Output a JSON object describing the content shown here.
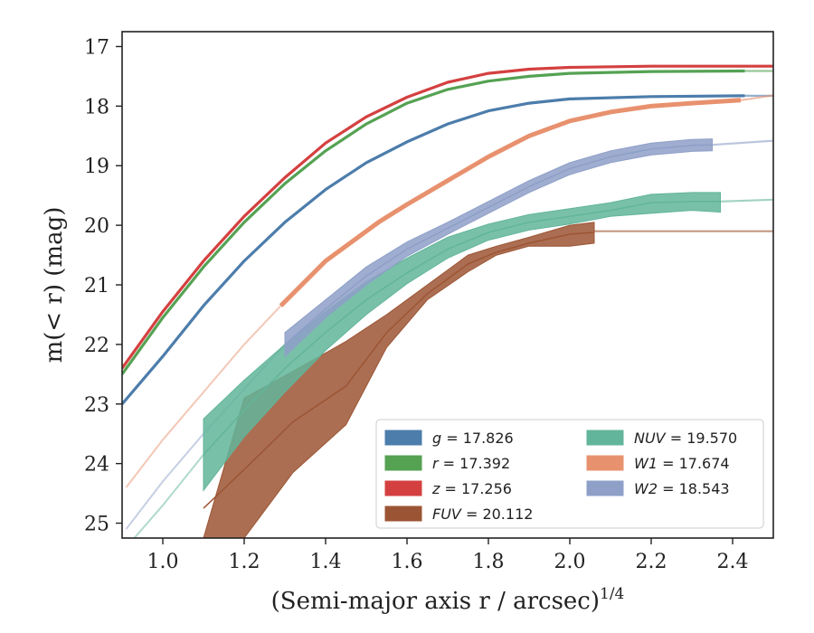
{
  "chart_data": {
    "type": "line",
    "title": "",
    "xlabel_main": "(Semi-major axis r / arcsec)",
    "xlabel_sup": "1/4",
    "ylabel": "m(< r) (mag)",
    "xlim": [
      0.9,
      2.5
    ],
    "ylim": [
      25.25,
      16.75
    ],
    "y_inverted": true,
    "xticks": [
      "1.0",
      "1.2",
      "1.4",
      "1.6",
      "1.8",
      "2.0",
      "2.2",
      "2.4"
    ],
    "xtick_values": [
      1.0,
      1.2,
      1.4,
      1.6,
      1.8,
      2.0,
      2.2,
      2.4
    ],
    "yticks": [
      "17",
      "18",
      "19",
      "20",
      "21",
      "22",
      "23",
      "24",
      "25"
    ],
    "ytick_values": [
      17,
      18,
      19,
      20,
      21,
      22,
      23,
      24,
      25
    ],
    "grid": false,
    "legend_placement": "bottom-right",
    "series": [
      {
        "name": "g = 17.826",
        "color": "#4c7dab",
        "style": "line",
        "x": [
          0.9,
          1.0,
          1.1,
          1.2,
          1.3,
          1.4,
          1.5,
          1.6,
          1.7,
          1.8,
          1.9,
          2.0,
          2.2,
          2.43
        ],
        "y": [
          23.0,
          22.2,
          21.35,
          20.6,
          19.95,
          19.4,
          18.95,
          18.6,
          18.3,
          18.08,
          17.95,
          17.88,
          17.84,
          17.826
        ],
        "ext_x": [
          2.43,
          2.5
        ],
        "ext_y": [
          17.826,
          17.826
        ]
      },
      {
        "name": "r = 17.392",
        "color": "#55a253",
        "style": "line",
        "x": [
          0.9,
          1.0,
          1.1,
          1.2,
          1.3,
          1.4,
          1.5,
          1.6,
          1.7,
          1.8,
          1.9,
          2.0,
          2.2,
          2.43
        ],
        "y": [
          22.5,
          21.55,
          20.7,
          19.95,
          19.3,
          18.75,
          18.3,
          17.95,
          17.72,
          17.58,
          17.5,
          17.45,
          17.42,
          17.41
        ],
        "ext_x": [
          2.43,
          2.5
        ],
        "ext_y": [
          17.41,
          17.41
        ]
      },
      {
        "name": "z = 17.256",
        "color": "#d44040",
        "style": "line",
        "x": [
          0.9,
          1.0,
          1.1,
          1.2,
          1.3,
          1.4,
          1.5,
          1.6,
          1.7,
          1.8,
          1.9,
          2.0,
          2.2,
          2.5
        ],
        "y": [
          22.4,
          21.45,
          20.6,
          19.85,
          19.2,
          18.62,
          18.18,
          17.85,
          17.6,
          17.45,
          17.38,
          17.35,
          17.33,
          17.33
        ],
        "ext_x": [],
        "ext_y": []
      },
      {
        "name": "FUV = 20.112",
        "color": "#9c5534",
        "style": "band",
        "x": [
          1.1,
          1.2,
          1.32,
          1.45,
          1.55,
          1.65,
          1.75,
          1.82,
          1.9,
          2.0,
          2.06
        ],
        "y": [
          24.75,
          24.1,
          23.3,
          22.7,
          21.8,
          21.15,
          20.65,
          20.45,
          20.3,
          20.15,
          20.12
        ],
        "y_upper": [
          25.25,
          25.25,
          24.15,
          23.35,
          22.05,
          21.25,
          20.78,
          20.5,
          20.35,
          20.35,
          20.3
        ],
        "y_lower": [
          25.25,
          22.9,
          22.45,
          21.95,
          21.5,
          21.0,
          20.5,
          20.35,
          20.2,
          20.0,
          19.95
        ],
        "ext_x": [
          2.06,
          2.5
        ],
        "ext_y": [
          20.1,
          20.1
        ]
      },
      {
        "name": "NUV = 19.570",
        "color": "#62b59a",
        "style": "band",
        "x": [
          1.1,
          1.2,
          1.3,
          1.4,
          1.5,
          1.6,
          1.7,
          1.8,
          1.9,
          2.0,
          2.1,
          2.2,
          2.3,
          2.37
        ],
        "y": [
          23.85,
          23.1,
          22.4,
          21.8,
          21.25,
          20.8,
          20.4,
          20.12,
          19.95,
          19.85,
          19.75,
          19.62,
          19.6,
          19.6
        ],
        "y_upper": [
          24.45,
          23.55,
          22.8,
          22.1,
          21.5,
          20.98,
          20.55,
          20.25,
          20.08,
          19.98,
          19.85,
          19.8,
          19.75,
          19.78
        ],
        "y_lower": [
          23.25,
          22.6,
          22.0,
          21.45,
          20.95,
          20.55,
          20.2,
          19.98,
          19.82,
          19.72,
          19.62,
          19.48,
          19.45,
          19.45
        ],
        "ext_x": [
          2.37,
          2.5
        ],
        "ext_y": [
          19.6,
          19.57
        ]
      },
      {
        "name": "W1 = 17.674",
        "color": "#e8916e",
        "style": "thick",
        "x": [
          1.29,
          1.4,
          1.53,
          1.6,
          1.7,
          1.8,
          1.9,
          2.0,
          2.1,
          2.2,
          2.3,
          2.42
        ],
        "y": [
          21.35,
          20.6,
          19.95,
          19.65,
          19.25,
          18.85,
          18.5,
          18.25,
          18.1,
          18.0,
          17.95,
          17.9
        ],
        "ext_x": [
          2.42,
          2.5
        ],
        "ext_y": [
          17.9,
          17.82
        ]
      },
      {
        "name": "W2 = 18.543",
        "color": "#8e9fc8",
        "style": "band",
        "x": [
          1.3,
          1.4,
          1.5,
          1.6,
          1.7,
          1.8,
          1.9,
          2.0,
          2.1,
          2.2,
          2.3,
          2.35
        ],
        "y": [
          22.0,
          21.4,
          20.85,
          20.4,
          20.05,
          19.7,
          19.35,
          19.05,
          18.85,
          18.72,
          18.66,
          18.65
        ],
        "y_upper": [
          22.2,
          21.55,
          21.0,
          20.52,
          20.15,
          19.8,
          19.45,
          19.15,
          18.95,
          18.82,
          18.76,
          18.75
        ],
        "y_lower": [
          21.8,
          21.25,
          20.7,
          20.28,
          19.95,
          19.6,
          19.25,
          18.95,
          18.75,
          18.62,
          18.56,
          18.55
        ],
        "ext_x": [
          2.35,
          2.5
        ],
        "ext_y": [
          18.65,
          18.58
        ]
      }
    ],
    "faint_extensions": [
      {
        "name": "W1",
        "color": "#e8916e",
        "x": [
          0.91,
          1.0,
          1.1,
          1.2,
          1.29
        ],
        "y": [
          24.4,
          23.6,
          22.8,
          22.0,
          21.35
        ]
      },
      {
        "name": "W2",
        "color": "#8e9fc8",
        "x": [
          0.91,
          1.0,
          1.1,
          1.2,
          1.3
        ],
        "y": [
          25.1,
          24.3,
          23.5,
          22.75,
          22.0
        ]
      },
      {
        "name": "NUV",
        "color": "#62b59a",
        "x": [
          0.93,
          1.0,
          1.1
        ],
        "y": [
          25.25,
          24.7,
          23.85
        ]
      }
    ],
    "legend": [
      {
        "label_italic": "g",
        "label_rest": " = 17.826",
        "color": "#4c7dab"
      },
      {
        "label_italic": "r",
        "label_rest": " = 17.392",
        "color": "#55a253"
      },
      {
        "label_italic": "z",
        "label_rest": " = 17.256",
        "color": "#d44040"
      },
      {
        "label_italic": "FUV",
        "label_rest": " = 20.112",
        "color": "#9c5534"
      },
      {
        "label_italic": "NUV",
        "label_rest": " = 19.570",
        "color": "#62b59a"
      },
      {
        "label_italic": "W1",
        "label_rest": " = 17.674",
        "color": "#e8916e"
      },
      {
        "label_italic": "W2",
        "label_rest": " = 18.543",
        "color": "#8e9fc8"
      }
    ]
  }
}
